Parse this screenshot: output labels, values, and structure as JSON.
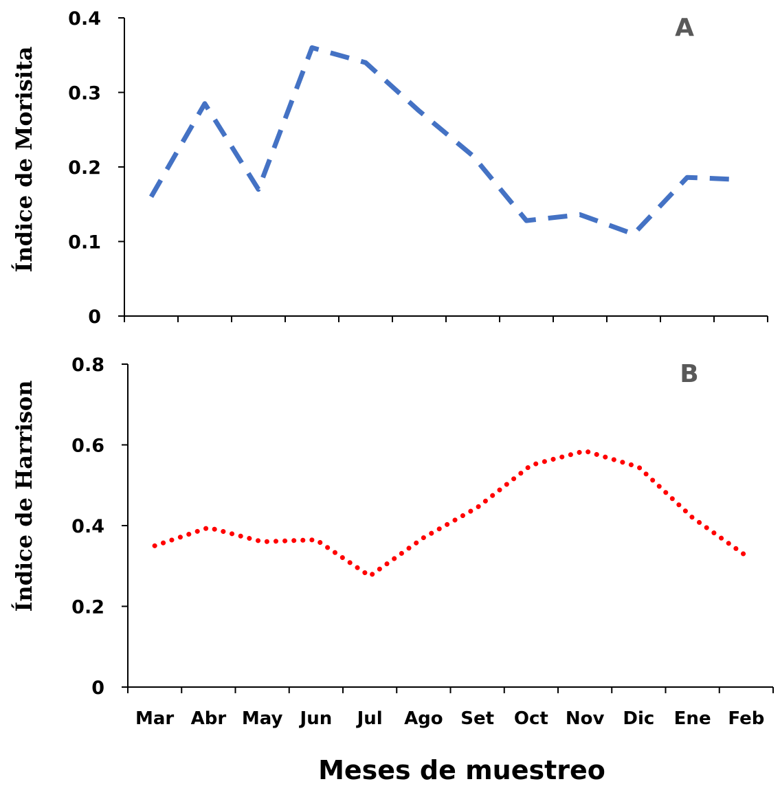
{
  "chart_data": [
    {
      "type": "line",
      "panel_label": "A",
      "ylabel": "Índice de Morisita",
      "xlabel": "",
      "ylim": [
        0,
        0.4
      ],
      "yticks": [
        "0",
        "0.1",
        "0.2",
        "0.3",
        "0.4"
      ],
      "yticks_values": [
        0,
        0.1,
        0.2,
        0.3,
        0.4
      ],
      "categories": [
        "Mar",
        "Abr",
        "May",
        "Jun",
        "Jul",
        "Ago",
        "Set",
        "Oct",
        "Nov",
        "Dic",
        "Ene",
        "Feb"
      ],
      "series": [
        {
          "values": [
            0.16,
            0.285,
            0.17,
            0.36,
            0.34,
            0.275,
            0.215,
            0.128,
            0.136,
            0.11,
            0.186,
            0.183
          ],
          "color": "#4472C4",
          "style": "dashed"
        }
      ],
      "grid": false,
      "legend": "none"
    },
    {
      "type": "line",
      "panel_label": "B",
      "ylabel": "Índice de Harrison",
      "xlabel": "Meses de muestreo",
      "ylim": [
        0,
        0.8
      ],
      "yticks": [
        "0",
        "0.2",
        "0.4",
        "0.6",
        "0.8"
      ],
      "yticks_values": [
        0,
        0.2,
        0.4,
        0.6,
        0.8
      ],
      "categories": [
        "Mar",
        "Abr",
        "May",
        "Jun",
        "Jul",
        "Ago",
        "Set",
        "Oct",
        "Nov",
        "Dic",
        "Ene",
        "Feb"
      ],
      "series": [
        {
          "values": [
            0.35,
            0.395,
            0.36,
            0.365,
            0.275,
            0.37,
            0.445,
            0.55,
            0.585,
            0.545,
            0.42,
            0.325
          ],
          "color": "#FF0000",
          "style": "dotted"
        }
      ],
      "grid": false,
      "legend": "none"
    }
  ]
}
